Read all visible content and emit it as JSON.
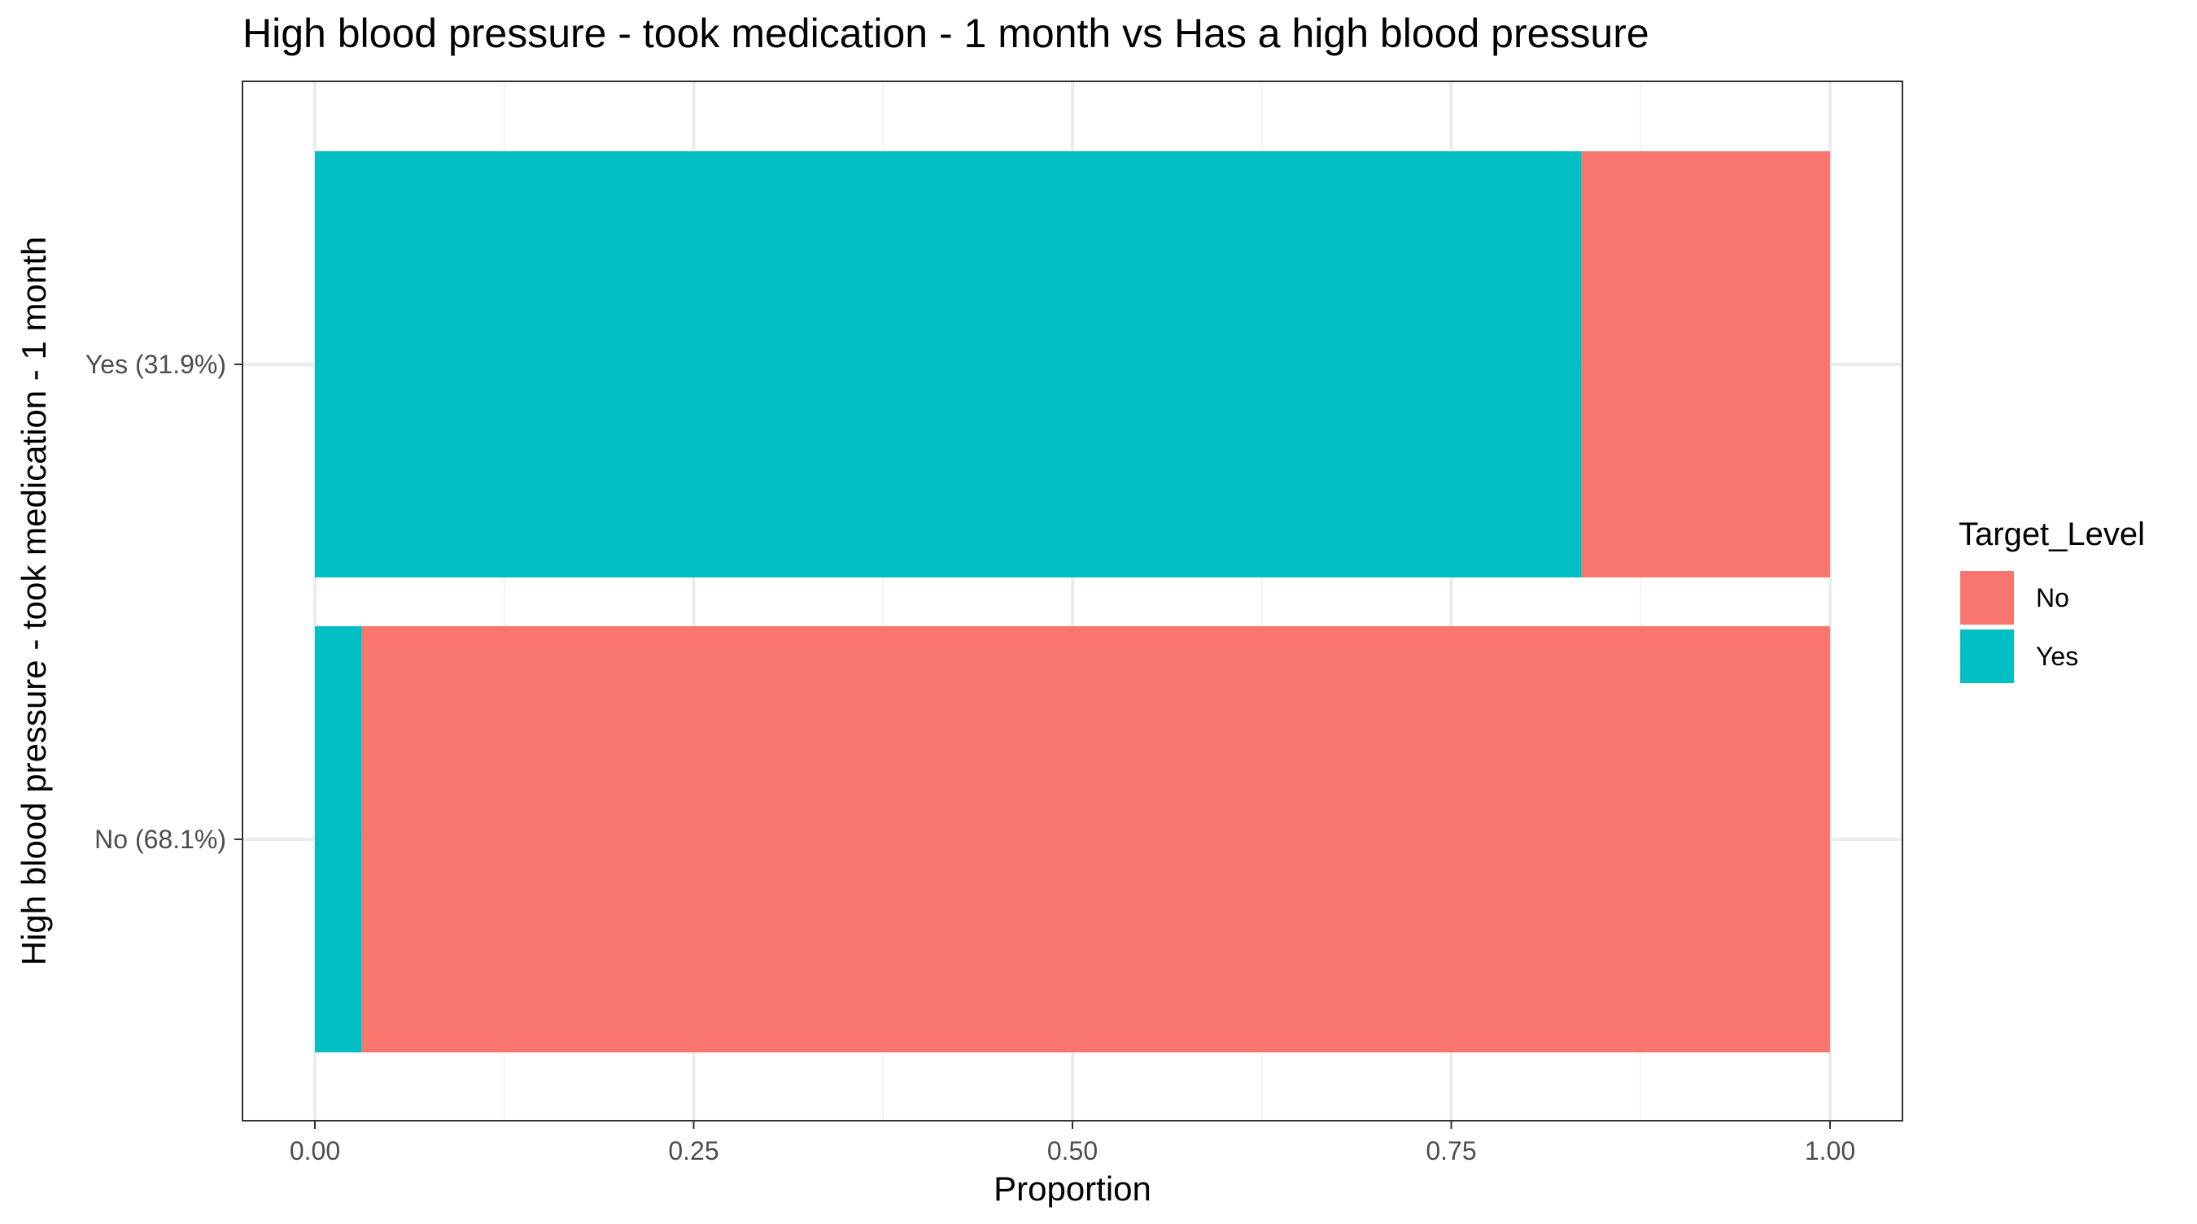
{
  "chart_data": {
    "type": "bar",
    "orientation": "horizontal",
    "stacked": true,
    "title": "High blood pressure - took medication - 1 month vs Has a high blood pressure",
    "xlabel": "Proportion",
    "ylabel": "High blood pressure - took medication - 1 month",
    "xlim": [
      0,
      1
    ],
    "xticks": [
      "0.00",
      "0.25",
      "0.50",
      "0.75",
      "1.00"
    ],
    "xtick_values": [
      0,
      0.25,
      0.5,
      0.75,
      1
    ],
    "categories": [
      "Yes (31.9%)",
      "No (68.1%)"
    ],
    "series": [
      {
        "name": "Yes",
        "color": "#00BFC4",
        "values": [
          0.836,
          0.031
        ]
      },
      {
        "name": "No",
        "color": "#F8766D",
        "values": [
          0.164,
          0.969
        ]
      }
    ],
    "legend": {
      "title": "Target_Level",
      "position": "right",
      "entries": [
        {
          "label": "No",
          "color": "#F8766D"
        },
        {
          "label": "Yes",
          "color": "#00BFC4"
        }
      ]
    },
    "grid": true
  }
}
